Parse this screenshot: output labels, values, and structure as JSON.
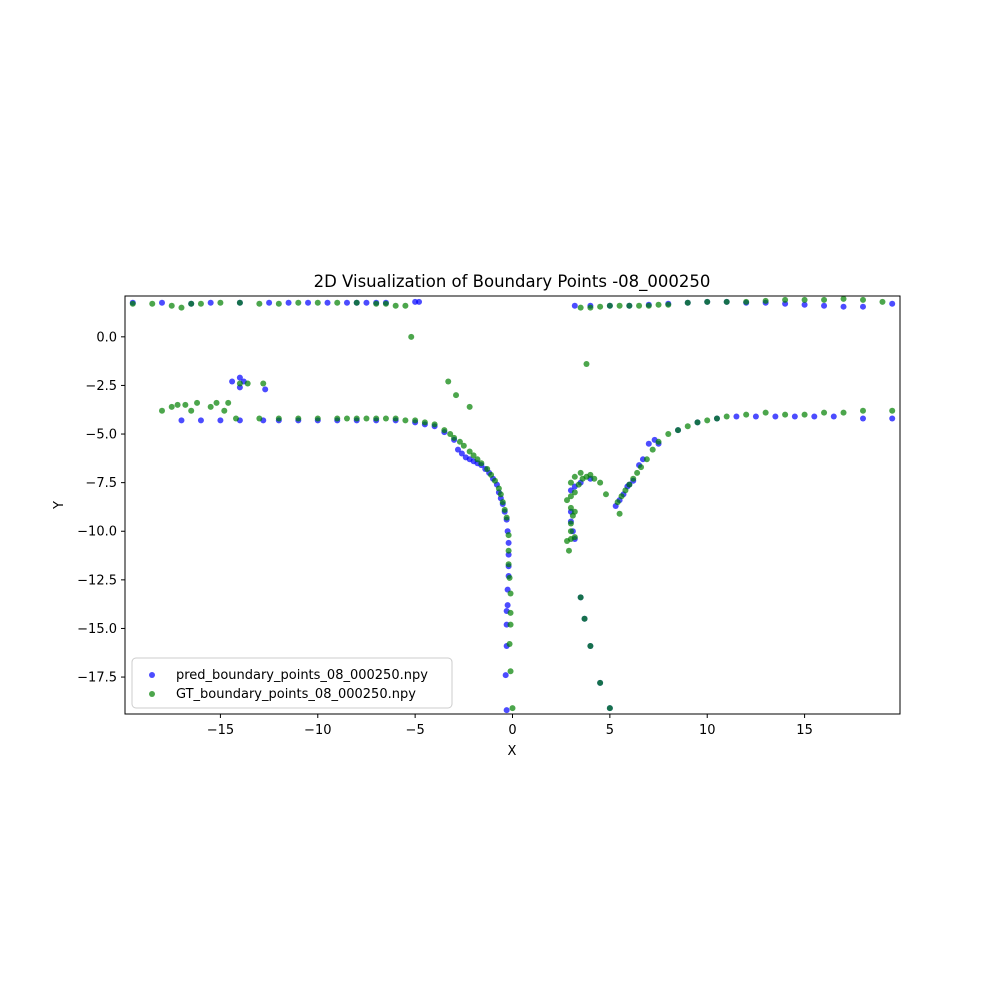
{
  "chart_data": {
    "type": "scatter",
    "title": "2D Visualization of Boundary Points -08_000250",
    "xlabel": "X",
    "ylabel": "Y",
    "xlim": [
      -19.9,
      19.9
    ],
    "ylim": [
      -19.4,
      2.1
    ],
    "xticks": [
      -15,
      -10,
      -5,
      0,
      5,
      10,
      15
    ],
    "xtick_labels": [
      "−15",
      "−10",
      "−5",
      "0",
      "5",
      "10",
      "15"
    ],
    "yticks": [
      0.0,
      -2.5,
      -5.0,
      -7.5,
      -10.0,
      -12.5,
      -15.0,
      -17.5
    ],
    "ytick_labels": [
      "0.0",
      "−2.5",
      "−5.0",
      "−7.5",
      "−10.0",
      "−12.5",
      "−15.0",
      "−17.5"
    ],
    "grid": false,
    "legend_position": "lower-left",
    "series": [
      {
        "name": "pred_boundary_points_08_000250.npy",
        "color": "#0000ff",
        "points": [
          [
            -19.5,
            1.75
          ],
          [
            -18.0,
            1.75
          ],
          [
            -16.5,
            1.7
          ],
          [
            -15.5,
            1.75
          ],
          [
            -14.0,
            1.75
          ],
          [
            -12.5,
            1.75
          ],
          [
            -11.5,
            1.75
          ],
          [
            -10.5,
            1.75
          ],
          [
            -9.5,
            1.75
          ],
          [
            -8.5,
            1.75
          ],
          [
            -8.0,
            1.75
          ],
          [
            -7.5,
            1.75
          ],
          [
            -7.0,
            1.75
          ],
          [
            -6.5,
            1.75
          ],
          [
            -5.0,
            1.8
          ],
          [
            -4.8,
            1.8
          ],
          [
            -14.4,
            -2.3
          ],
          [
            -14.0,
            -2.1
          ],
          [
            -13.8,
            -2.3
          ],
          [
            -14.0,
            -2.6
          ],
          [
            -12.7,
            -2.7
          ],
          [
            -17.0,
            -4.3
          ],
          [
            -16.0,
            -4.3
          ],
          [
            -15.0,
            -4.3
          ],
          [
            -14.0,
            -4.3
          ],
          [
            -12.8,
            -4.3
          ],
          [
            -12.0,
            -4.3
          ],
          [
            -11.0,
            -4.3
          ],
          [
            -10.0,
            -4.3
          ],
          [
            -9.0,
            -4.3
          ],
          [
            -8.0,
            -4.3
          ],
          [
            -7.0,
            -4.3
          ],
          [
            -6.0,
            -4.3
          ],
          [
            -5.0,
            -4.4
          ],
          [
            -4.5,
            -4.5
          ],
          [
            -4.0,
            -4.6
          ],
          [
            -3.5,
            -4.9
          ],
          [
            -3.0,
            -5.3
          ],
          [
            -2.8,
            -5.8
          ],
          [
            -2.6,
            -6.0
          ],
          [
            -2.4,
            -6.2
          ],
          [
            -2.2,
            -6.3
          ],
          [
            -2.0,
            -6.4
          ],
          [
            -1.8,
            -6.5
          ],
          [
            -1.6,
            -6.6
          ],
          [
            -1.4,
            -6.8
          ],
          [
            -1.2,
            -7.0
          ],
          [
            -1.0,
            -7.3
          ],
          [
            -0.8,
            -7.6
          ],
          [
            -0.7,
            -8.0
          ],
          [
            -0.6,
            -8.3
          ],
          [
            -0.5,
            -8.6
          ],
          [
            -0.4,
            -9.0
          ],
          [
            -0.3,
            -9.4
          ],
          [
            -0.25,
            -10.0
          ],
          [
            -0.2,
            -10.6
          ],
          [
            -0.2,
            -11.2
          ],
          [
            -0.2,
            -11.8
          ],
          [
            -0.2,
            -12.3
          ],
          [
            -0.25,
            -13.0
          ],
          [
            -0.25,
            -13.8
          ],
          [
            -0.3,
            -14.1
          ],
          [
            -0.3,
            -14.8
          ],
          [
            -0.3,
            -15.9
          ],
          [
            -0.35,
            -17.4
          ],
          [
            -0.3,
            -19.2
          ],
          [
            3.2,
            1.6
          ],
          [
            4.0,
            1.6
          ],
          [
            5.0,
            1.6
          ],
          [
            6.0,
            1.6
          ],
          [
            7.0,
            1.65
          ],
          [
            8.0,
            1.7
          ],
          [
            9.0,
            1.75
          ],
          [
            10.0,
            1.8
          ],
          [
            11.0,
            1.8
          ],
          [
            12.0,
            1.75
          ],
          [
            13.0,
            1.75
          ],
          [
            14.0,
            1.7
          ],
          [
            15.0,
            1.65
          ],
          [
            16.0,
            1.6
          ],
          [
            17.0,
            1.55
          ],
          [
            18.0,
            1.55
          ],
          [
            19.5,
            1.7
          ],
          [
            3.0,
            -7.9
          ],
          [
            3.2,
            -7.7
          ],
          [
            3.5,
            -7.5
          ],
          [
            4.0,
            -7.3
          ],
          [
            3.0,
            -9.0
          ],
          [
            3.0,
            -9.5
          ],
          [
            3.1,
            -10.0
          ],
          [
            3.2,
            -10.4
          ],
          [
            5.3,
            -8.7
          ],
          [
            5.5,
            -8.4
          ],
          [
            5.7,
            -8.1
          ],
          [
            5.9,
            -7.7
          ],
          [
            6.2,
            -7.4
          ],
          [
            6.0,
            -7.6
          ],
          [
            6.5,
            -6.6
          ],
          [
            6.7,
            -6.3
          ],
          [
            7.0,
            -5.5
          ],
          [
            7.3,
            -5.3
          ],
          [
            7.5,
            -5.5
          ],
          [
            8.5,
            -4.8
          ],
          [
            9.5,
            -4.4
          ],
          [
            10.5,
            -4.2
          ],
          [
            11.5,
            -4.1
          ],
          [
            12.5,
            -4.1
          ],
          [
            13.5,
            -4.1
          ],
          [
            14.5,
            -4.1
          ],
          [
            15.5,
            -4.1
          ],
          [
            16.5,
            -4.1
          ],
          [
            18.0,
            -4.2
          ],
          [
            19.5,
            -4.2
          ],
          [
            3.5,
            -13.4
          ],
          [
            3.7,
            -14.5
          ],
          [
            4.0,
            -15.9
          ],
          [
            4.5,
            -17.8
          ],
          [
            5.0,
            -19.1
          ]
        ]
      },
      {
        "name": "GT_boundary_points_08_000250.npy",
        "color": "#008000",
        "points": [
          [
            -19.5,
            1.7
          ],
          [
            -18.5,
            1.7
          ],
          [
            -17.5,
            1.6
          ],
          [
            -17.0,
            1.5
          ],
          [
            -16.5,
            1.7
          ],
          [
            -16.0,
            1.7
          ],
          [
            -15.0,
            1.75
          ],
          [
            -14.0,
            1.75
          ],
          [
            -13.0,
            1.7
          ],
          [
            -12.0,
            1.7
          ],
          [
            -11.0,
            1.75
          ],
          [
            -10.0,
            1.75
          ],
          [
            -9.0,
            1.75
          ],
          [
            -8.0,
            1.75
          ],
          [
            -7.0,
            1.7
          ],
          [
            -6.5,
            1.7
          ],
          [
            -6.0,
            1.6
          ],
          [
            -5.5,
            1.6
          ],
          [
            -5.2,
            0.0
          ],
          [
            -14.0,
            -2.4
          ],
          [
            -13.6,
            -2.4
          ],
          [
            -12.8,
            -2.4
          ],
          [
            -18.0,
            -3.8
          ],
          [
            -17.5,
            -3.6
          ],
          [
            -17.2,
            -3.5
          ],
          [
            -16.8,
            -3.5
          ],
          [
            -16.5,
            -3.8
          ],
          [
            -16.2,
            -3.4
          ],
          [
            -15.5,
            -3.6
          ],
          [
            -15.2,
            -3.4
          ],
          [
            -14.8,
            -3.8
          ],
          [
            -14.6,
            -3.4
          ],
          [
            -14.2,
            -4.2
          ],
          [
            -13.0,
            -4.2
          ],
          [
            -12.0,
            -4.2
          ],
          [
            -11.0,
            -4.2
          ],
          [
            -10.0,
            -4.2
          ],
          [
            -9.0,
            -4.2
          ],
          [
            -8.5,
            -4.2
          ],
          [
            -8.0,
            -4.2
          ],
          [
            -7.5,
            -4.2
          ],
          [
            -7.0,
            -4.2
          ],
          [
            -6.5,
            -4.2
          ],
          [
            -6.0,
            -4.2
          ],
          [
            -5.5,
            -4.3
          ],
          [
            -5.0,
            -4.3
          ],
          [
            -4.5,
            -4.4
          ],
          [
            -4.0,
            -4.5
          ],
          [
            -3.5,
            -4.8
          ],
          [
            -3.2,
            -5.0
          ],
          [
            -3.0,
            -5.2
          ],
          [
            -2.7,
            -5.4
          ],
          [
            -2.5,
            -5.6
          ],
          [
            -2.2,
            -5.9
          ],
          [
            -2.0,
            -6.1
          ],
          [
            -1.8,
            -6.3
          ],
          [
            -1.6,
            -6.5
          ],
          [
            -1.3,
            -6.8
          ],
          [
            -1.1,
            -7.1
          ],
          [
            -0.9,
            -7.4
          ],
          [
            -0.7,
            -7.8
          ],
          [
            -0.6,
            -8.1
          ],
          [
            -0.5,
            -8.5
          ],
          [
            -0.4,
            -8.9
          ],
          [
            -0.3,
            -9.3
          ],
          [
            -0.2,
            -10.2
          ],
          [
            -0.2,
            -11.0
          ],
          [
            -0.2,
            -11.7
          ],
          [
            -0.15,
            -12.4
          ],
          [
            -0.1,
            -13.2
          ],
          [
            -0.1,
            -14.2
          ],
          [
            -0.1,
            -14.8
          ],
          [
            -0.15,
            -15.8
          ],
          [
            -0.1,
            -17.2
          ],
          [
            0.0,
            -19.1
          ],
          [
            -3.3,
            -2.3
          ],
          [
            -2.9,
            -3.0
          ],
          [
            -2.2,
            -3.6
          ],
          [
            3.5,
            1.5
          ],
          [
            4.0,
            1.5
          ],
          [
            4.5,
            1.55
          ],
          [
            5.0,
            1.6
          ],
          [
            5.5,
            1.6
          ],
          [
            6.0,
            1.6
          ],
          [
            6.5,
            1.6
          ],
          [
            7.0,
            1.6
          ],
          [
            7.5,
            1.65
          ],
          [
            8.0,
            1.65
          ],
          [
            9.0,
            1.75
          ],
          [
            10.0,
            1.8
          ],
          [
            11.0,
            1.8
          ],
          [
            12.0,
            1.8
          ],
          [
            13.0,
            1.85
          ],
          [
            14.0,
            1.9
          ],
          [
            15.0,
            1.9
          ],
          [
            16.0,
            1.9
          ],
          [
            17.0,
            1.95
          ],
          [
            18.0,
            1.9
          ],
          [
            19.0,
            1.8
          ],
          [
            3.8,
            -1.4
          ],
          [
            3.0,
            -8.2
          ],
          [
            3.2,
            -8.0
          ],
          [
            3.4,
            -7.6
          ],
          [
            3.6,
            -7.3
          ],
          [
            3.8,
            -7.2
          ],
          [
            4.0,
            -7.1
          ],
          [
            4.2,
            -7.3
          ],
          [
            3.0,
            -7.5
          ],
          [
            3.2,
            -7.2
          ],
          [
            3.5,
            -7.0
          ],
          [
            2.8,
            -8.4
          ],
          [
            3.0,
            -8.8
          ],
          [
            3.1,
            -9.2
          ],
          [
            3.0,
            -9.6
          ],
          [
            3.2,
            -9.0
          ],
          [
            3.0,
            -10.0
          ],
          [
            2.8,
            -10.5
          ],
          [
            3.0,
            -10.4
          ],
          [
            3.2,
            -10.3
          ],
          [
            2.9,
            -11.0
          ],
          [
            4.5,
            -7.5
          ],
          [
            4.8,
            -8.1
          ],
          [
            5.4,
            -8.5
          ],
          [
            5.6,
            -8.2
          ],
          [
            5.8,
            -7.9
          ],
          [
            6.0,
            -7.6
          ],
          [
            6.2,
            -7.3
          ],
          [
            6.4,
            -7.0
          ],
          [
            6.6,
            -6.7
          ],
          [
            6.9,
            -6.3
          ],
          [
            7.2,
            -5.8
          ],
          [
            7.5,
            -5.4
          ],
          [
            5.5,
            -9.1
          ],
          [
            8.0,
            -5.0
          ],
          [
            8.5,
            -4.8
          ],
          [
            9.0,
            -4.6
          ],
          [
            9.5,
            -4.4
          ],
          [
            10.0,
            -4.3
          ],
          [
            10.5,
            -4.2
          ],
          [
            11.0,
            -4.1
          ],
          [
            12.0,
            -4.0
          ],
          [
            13.0,
            -3.9
          ],
          [
            14.0,
            -4.0
          ],
          [
            15.0,
            -4.0
          ],
          [
            16.0,
            -3.9
          ],
          [
            17.0,
            -3.9
          ],
          [
            18.0,
            -3.8
          ],
          [
            19.5,
            -3.8
          ],
          [
            3.5,
            -13.4
          ],
          [
            3.7,
            -14.5
          ],
          [
            4.0,
            -15.9
          ],
          [
            4.5,
            -17.8
          ],
          [
            5.0,
            -19.1
          ]
        ]
      }
    ]
  }
}
